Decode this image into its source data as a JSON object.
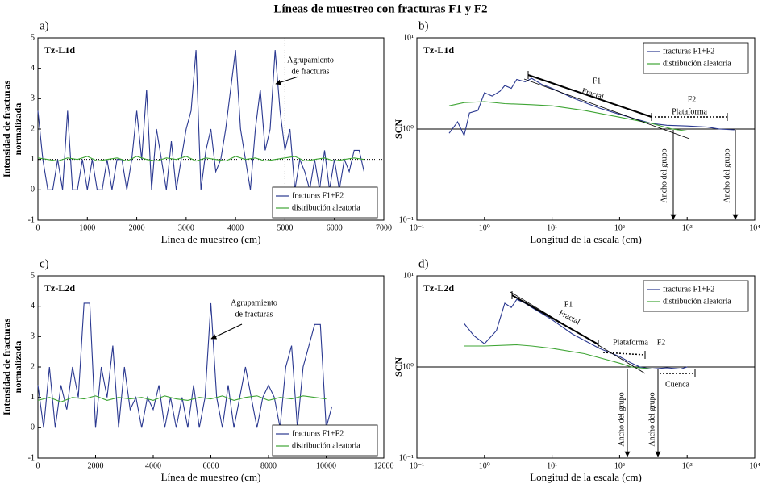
{
  "title": "Líneas de muestreo con fracturas F1 y F2",
  "chart_data": [
    {
      "type": "line",
      "panel": "a)",
      "tag": "Tz-L1d",
      "xlabel": "Línea de muestreo (cm)",
      "ylabel": [
        "Intensidad de fracturas",
        "normalizada"
      ],
      "xlim": [
        0,
        7000
      ],
      "ylim": [
        -1,
        5
      ],
      "xticks": [
        0,
        1000,
        2000,
        3000,
        4000,
        5000,
        6000,
        7000
      ],
      "yticks": [
        -1,
        0,
        1,
        2,
        3,
        4,
        5
      ],
      "log": false,
      "legend": "lower right",
      "hline": 1,
      "vline": 5000,
      "annotations": [
        "Agrupamiento",
        "de fracturas"
      ],
      "series": [
        {
          "name": "fracturas F1+F2",
          "color": "#2a3890",
          "x": [
            0,
            100,
            200,
            300,
            400,
            500,
            600,
            700,
            800,
            900,
            1000,
            1100,
            1200,
            1300,
            1400,
            1500,
            1600,
            1700,
            1800,
            1900,
            2000,
            2100,
            2200,
            2300,
            2400,
            2500,
            2600,
            2700,
            2800,
            2900,
            3000,
            3100,
            3200,
            3300,
            3400,
            3500,
            3600,
            3700,
            3800,
            3900,
            4000,
            4100,
            4200,
            4300,
            4400,
            4500,
            4600,
            4700,
            4800,
            4900,
            5000,
            5100,
            5200,
            5300,
            5400,
            5500,
            5600,
            5700,
            5800,
            5900,
            6000,
            6100,
            6200,
            6300,
            6400,
            6500,
            6600
          ],
          "values": [
            2.6,
            1,
            0,
            0,
            1,
            0,
            2.6,
            0,
            0,
            1,
            0,
            1,
            0,
            0,
            1,
            0,
            1,
            1,
            0,
            1,
            2.6,
            1,
            3.3,
            0,
            2,
            1,
            0,
            1.6,
            0,
            1,
            2,
            2.6,
            4.6,
            0,
            1.3,
            2,
            0.6,
            1,
            2,
            3.3,
            4.6,
            2,
            1,
            0,
            2,
            3.3,
            1.3,
            2,
            4.6,
            2.6,
            1.3,
            2,
            0,
            1,
            0.6,
            0,
            1,
            0,
            1.3,
            0,
            1,
            0,
            1,
            0.6,
            1.3,
            1.3,
            0.6
          ]
        },
        {
          "name": "distribución aleatoria",
          "color": "#3fa535",
          "x": [
            0,
            200,
            400,
            600,
            800,
            1000,
            1200,
            1400,
            1600,
            1800,
            2000,
            2200,
            2400,
            2600,
            2800,
            3000,
            3200,
            3400,
            3600,
            3800,
            4000,
            4200,
            4400,
            4600,
            4800,
            5000,
            5200,
            5400,
            5600,
            5800,
            6000,
            6200,
            6400,
            6600
          ],
          "values": [
            1.05,
            1.0,
            0.95,
            1.05,
            1.0,
            1.1,
            0.95,
            1.0,
            1.05,
            0.95,
            1.1,
            1.0,
            0.95,
            1.05,
            1.0,
            1.1,
            0.95,
            1.05,
            1.0,
            0.95,
            1.1,
            1.0,
            1.05,
            0.95,
            1.0,
            1.05,
            1.1,
            0.95,
            1.0,
            1.05,
            0.95,
            1.0,
            1.05,
            1.0
          ]
        }
      ]
    },
    {
      "type": "line",
      "panel": "b)",
      "tag": "Tz-L1d",
      "xlabel": "Longitud de la escala (cm)",
      "ylabel": [
        "SCN"
      ],
      "xlim": [
        0.1,
        10000
      ],
      "ylim": [
        0.1,
        10
      ],
      "xticks": [
        {
          "value": 0.1,
          "label": "10⁻¹"
        },
        {
          "value": 1,
          "label": "10⁰"
        },
        {
          "value": 10,
          "label": "10¹"
        },
        {
          "value": 100,
          "label": "10²"
        },
        {
          "value": 1000,
          "label": "10³"
        },
        {
          "value": 10000,
          "label": "10⁴"
        }
      ],
      "yticks": [
        {
          "value": 0.1,
          "label": "10⁻¹"
        },
        {
          "value": 1,
          "label": "10⁰"
        },
        {
          "value": 10,
          "label": "10¹"
        }
      ],
      "log": true,
      "legend": "upper right",
      "hline": 1,
      "annotations": [
        "F1",
        "Fractal",
        "F2",
        "Plataforma",
        "Ancho del grupo",
        "Ancho del grupo"
      ],
      "series": [
        {
          "name": "fracturas F1+F2",
          "color": "#2a3890",
          "x": [
            0.3,
            0.4,
            0.5,
            0.6,
            0.8,
            1,
            1.3,
            1.7,
            2,
            2.5,
            3,
            4,
            5,
            7,
            10,
            20,
            50,
            100,
            200,
            300,
            500,
            1000,
            2000,
            3000,
            5000
          ],
          "values": [
            0.9,
            1.2,
            0.85,
            1.5,
            1.6,
            2.5,
            2.3,
            2.6,
            3,
            2.8,
            3.5,
            3.3,
            3.6,
            3.1,
            2.8,
            2.2,
            1.7,
            1.45,
            1.25,
            1.15,
            1.1,
            1.08,
            1.05,
            1.0,
            0.98
          ]
        },
        {
          "name": "distribución aleatoria",
          "color": "#3fa535",
          "x": [
            0.3,
            0.5,
            1,
            2,
            5,
            10,
            30,
            100,
            300,
            600,
            1000
          ],
          "values": [
            1.8,
            1.95,
            2,
            1.9,
            1.85,
            1.8,
            1.6,
            1.35,
            1.15,
            1.0,
            0.95
          ]
        }
      ]
    },
    {
      "type": "line",
      "panel": "c)",
      "tag": "Tz-L2d",
      "xlabel": "Línea de muestreo (cm)",
      "ylabel": [
        "Intensidad de fracturas",
        "normalizada"
      ],
      "xlim": [
        0,
        12000
      ],
      "ylim": [
        -1,
        5
      ],
      "xticks": [
        0,
        2000,
        4000,
        6000,
        8000,
        10000,
        12000
      ],
      "yticks": [
        -1,
        0,
        1,
        2,
        3,
        4,
        5
      ],
      "log": false,
      "legend": "lower right",
      "annotations": [
        "Agrupamiento",
        "de fracturas"
      ],
      "series": [
        {
          "name": "fracturas F1+F2",
          "color": "#2a3890",
          "x": [
            0,
            200,
            400,
            600,
            800,
            1000,
            1200,
            1400,
            1600,
            1800,
            2000,
            2200,
            2400,
            2600,
            2800,
            3000,
            3200,
            3400,
            3600,
            3800,
            4000,
            4200,
            4400,
            4600,
            4800,
            5000,
            5200,
            5400,
            5600,
            5800,
            6000,
            6200,
            6400,
            6600,
            6800,
            7000,
            7200,
            7400,
            7600,
            7800,
            8000,
            8200,
            8400,
            8600,
            8800,
            9000,
            9200,
            9400,
            9600,
            9800,
            10000,
            10200
          ],
          "values": [
            1.4,
            0,
            2,
            0,
            1.4,
            0.6,
            2,
            1,
            4.1,
            4.1,
            0,
            2,
            1,
            2.7,
            0,
            2,
            0.6,
            1,
            0,
            1,
            0.6,
            1.4,
            0,
            1,
            0,
            1,
            0,
            1.4,
            0,
            1,
            4.1,
            1,
            0,
            1.4,
            0,
            1,
            2,
            1,
            0,
            1,
            1.4,
            1,
            0,
            2,
            2.7,
            0,
            2,
            2.7,
            3.4,
            3.4,
            0,
            0.7
          ]
        },
        {
          "name": "distribución aleatoria",
          "color": "#3fa535",
          "x": [
            0,
            400,
            800,
            1200,
            1600,
            2000,
            2400,
            2800,
            3200,
            3600,
            4000,
            4400,
            4800,
            5200,
            5600,
            6000,
            6400,
            6800,
            7200,
            7600,
            8000,
            8400,
            8800,
            9200,
            9600,
            10000
          ],
          "values": [
            0.9,
            1.0,
            0.85,
            1.0,
            0.95,
            1.05,
            0.9,
            1.0,
            0.95,
            1.0,
            0.9,
            1.05,
            0.95,
            0.9,
            1.0,
            0.95,
            1.05,
            0.9,
            1.0,
            1.05,
            0.9,
            1.0,
            0.95,
            1.05,
            1.0,
            0.95
          ]
        }
      ]
    },
    {
      "type": "line",
      "panel": "d)",
      "tag": "Tz-L2d",
      "xlabel": "Longitud de la escala (cm)",
      "ylabel": [
        "SCN"
      ],
      "xlim": [
        0.1,
        10000
      ],
      "ylim": [
        0.1,
        10
      ],
      "xticks": [
        {
          "value": 0.1,
          "label": "10⁻¹"
        },
        {
          "value": 1,
          "label": "10⁰"
        },
        {
          "value": 10,
          "label": "10¹"
        },
        {
          "value": 100,
          "label": "10²"
        },
        {
          "value": 1000,
          "label": "10³"
        },
        {
          "value": 10000,
          "label": "10⁴"
        }
      ],
      "yticks": [
        {
          "value": 0.1,
          "label": "10⁻¹"
        },
        {
          "value": 1,
          "label": "10⁰"
        },
        {
          "value": 10,
          "label": "10¹"
        }
      ],
      "log": true,
      "legend": "upper right",
      "hline": 1,
      "annotations": [
        "F1",
        "Fractal",
        "Plataforma",
        "F2",
        "Ancho del grupo",
        "Ancho del grupo",
        "Cuenca"
      ],
      "series": [
        {
          "name": "fracturas F1+F2",
          "color": "#2a3890",
          "x": [
            0.5,
            0.7,
            1,
            1.5,
            2,
            2.5,
            3,
            4,
            5,
            10,
            20,
            50,
            100,
            150,
            200,
            300,
            500,
            800,
            1000
          ],
          "values": [
            3,
            2.2,
            1.8,
            2.5,
            5,
            4.5,
            5.5,
            5,
            4.5,
            3.3,
            2.3,
            1.6,
            1.3,
            1.1,
            1.0,
            0.95,
            0.98,
            0.95,
            1.0
          ]
        },
        {
          "name": "distribución aleatoria",
          "color": "#3fa535",
          "x": [
            0.5,
            1,
            3,
            5,
            10,
            30,
            100,
            150,
            300
          ],
          "values": [
            1.7,
            1.7,
            1.75,
            1.7,
            1.6,
            1.4,
            1.1,
            1.0,
            0.95
          ]
        }
      ]
    }
  ]
}
